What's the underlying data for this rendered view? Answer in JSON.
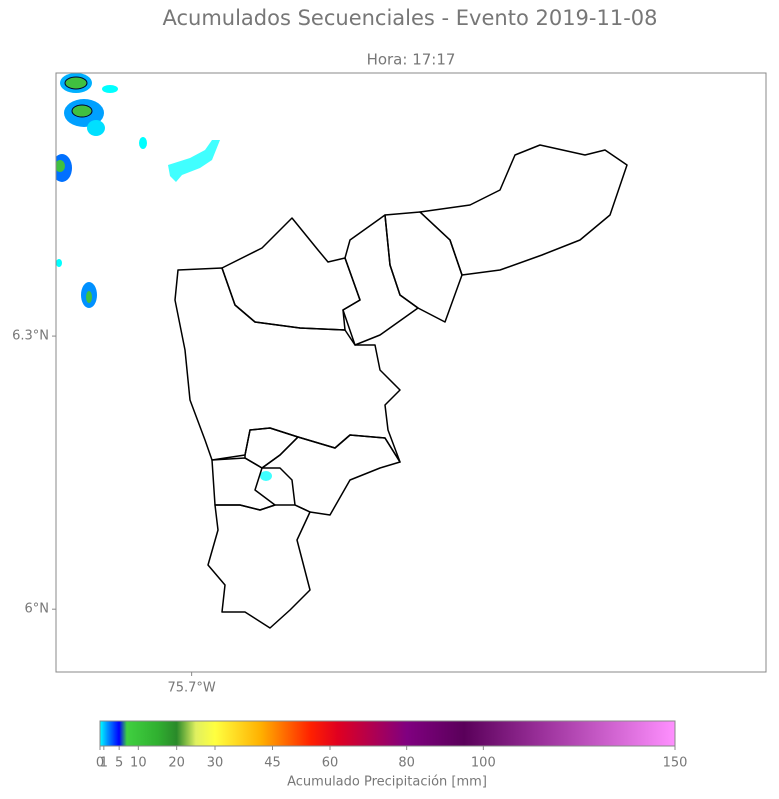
{
  "map_data": {
    "title": "Acumulados Secuenciales - Evento 2019-11-08",
    "subtitle": "Hora: 17:17",
    "xlim": [
      -75.849,
      -75.069
    ],
    "ylim": [
      5.931,
      6.589
    ],
    "xticks": [
      {
        "value": -75.7,
        "label": "75.7°W"
      }
    ],
    "yticks": [
      {
        "value": 6.3,
        "label": "6.3°N"
      },
      {
        "value": 6.0,
        "label": "6°N"
      }
    ],
    "colorbar": {
      "label": "Acumulado Precipitación [mm]",
      "lim": [
        0,
        150
      ],
      "ticks": [
        0,
        1,
        5,
        10,
        20,
        30,
        45,
        60,
        80,
        100,
        150
      ],
      "cmap": [
        {
          "value": 0,
          "color": "#00ffff"
        },
        {
          "value": 2,
          "color": "#0090ff"
        },
        {
          "value": 5,
          "color": "#0000ff"
        },
        {
          "value": 7,
          "color": "#40d040"
        },
        {
          "value": 15,
          "color": "#30b030"
        },
        {
          "value": 20,
          "color": "#2a8a2a"
        },
        {
          "value": 25,
          "color": "#e0f060"
        },
        {
          "value": 30,
          "color": "#ffff40"
        },
        {
          "value": 42,
          "color": "#ffb000"
        },
        {
          "value": 55,
          "color": "#ff2000"
        },
        {
          "value": 62,
          "color": "#e00020"
        },
        {
          "value": 80,
          "color": "#800080"
        },
        {
          "value": 95,
          "color": "#5a005a"
        },
        {
          "value": 115,
          "color": "#9a309a"
        },
        {
          "value": 150,
          "color": "#ff90ff"
        }
      ]
    }
  }
}
